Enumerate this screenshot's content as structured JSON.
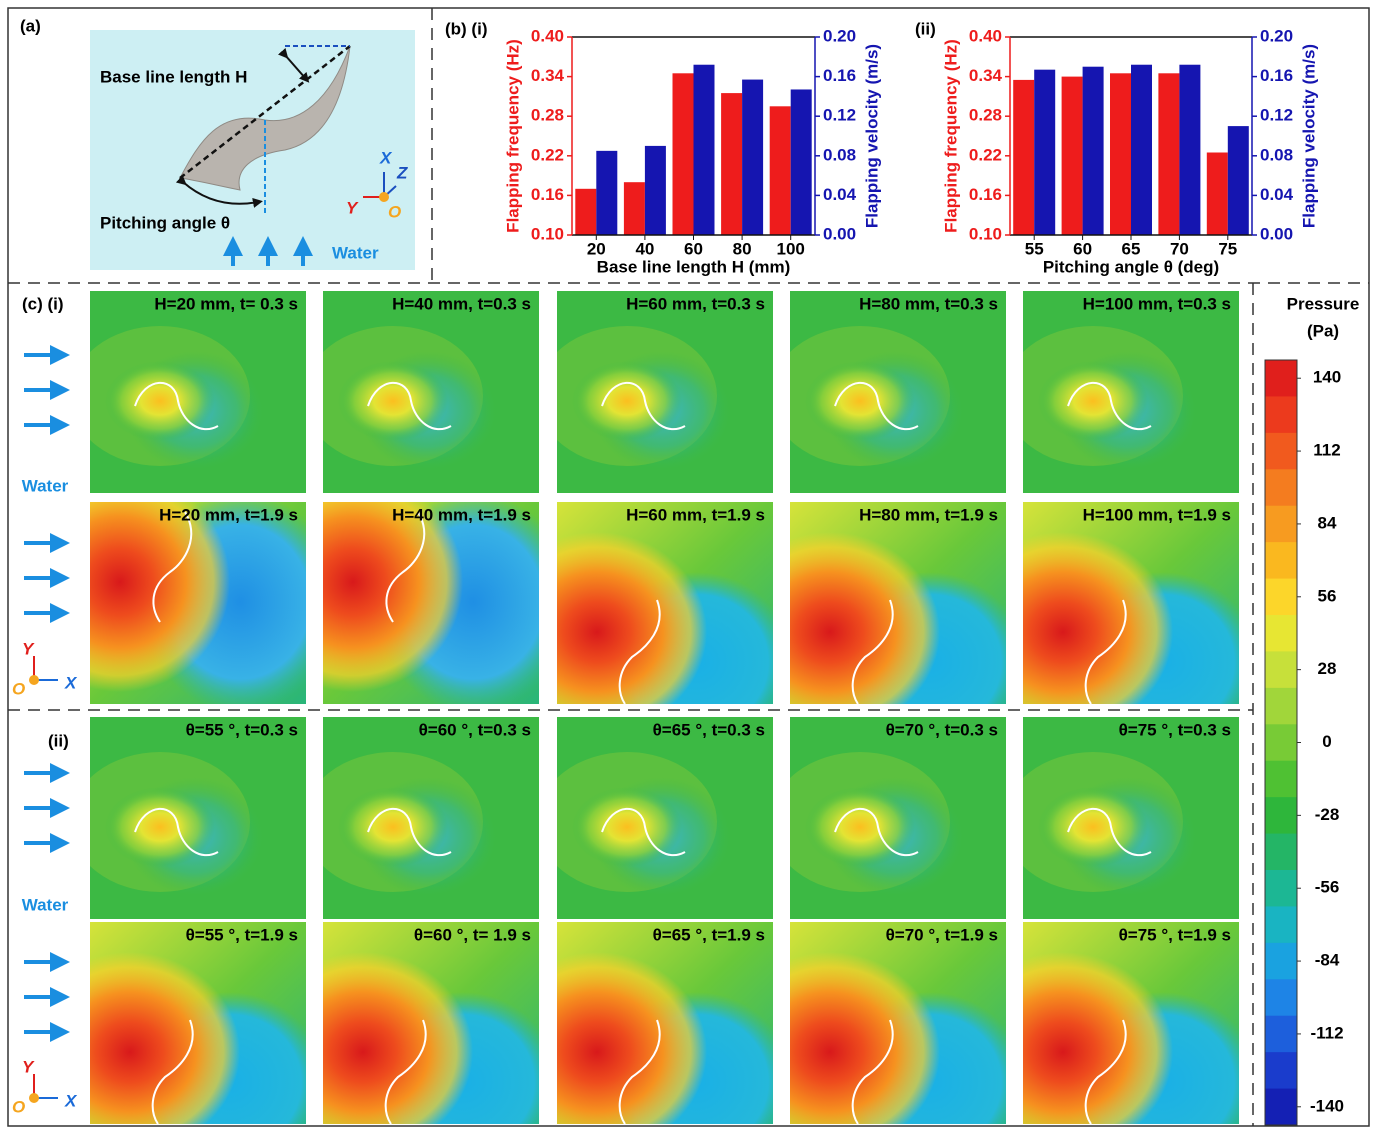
{
  "panel_a": {
    "label": "(a)",
    "baseline": "Base line length H",
    "pitching": "Pitching angle θ",
    "water": "Water",
    "axes": {
      "x": "X",
      "z": "Z",
      "y": "Y",
      "o": "O"
    }
  },
  "chart_data": [
    {
      "type": "bar",
      "label": "(b) (i)",
      "xlabel": "Base line length H (mm)",
      "ylabel": "Flapping frequency (Hz)",
      "y2label": "Flapping velocity (m/s)",
      "categories": [
        "20",
        "40",
        "60",
        "80",
        "100"
      ],
      "series": [
        {
          "color": "#ee1c1c",
          "values": [
            0.17,
            0.18,
            0.345,
            0.315,
            0.295
          ]
        },
        {
          "color": "#1515b0",
          "axis": "y2",
          "values": [
            0.085,
            0.09,
            0.172,
            0.157,
            0.147
          ]
        }
      ],
      "ylim": [
        0.1,
        0.4
      ],
      "yticks": [
        {
          "value": 0.1,
          "label": "0.10"
        },
        0.16,
        0.22,
        0.28,
        0.34,
        {
          "value": 0.4,
          "label": "0.40"
        }
      ],
      "y2lim": [
        0,
        0.2
      ],
      "y2ticks": [
        {
          "value": 0,
          "label": "0.00"
        },
        0.04,
        0.08,
        0.12,
        0.16,
        {
          "value": 0.2,
          "label": "0.20"
        }
      ]
    },
    {
      "type": "bar",
      "label": "(ii)",
      "xlabel": "Pitching angle θ (deg)",
      "ylabel": "Flapping frequency (Hz)",
      "y2label": "Flapping velocity (m/s)",
      "categories": [
        "55",
        "60",
        "65",
        "70",
        "75"
      ],
      "series": [
        {
          "color": "#ee1c1c",
          "values": [
            0.335,
            0.34,
            0.345,
            0.345,
            0.225
          ]
        },
        {
          "color": "#1515b0",
          "axis": "y2",
          "values": [
            0.167,
            0.17,
            0.172,
            0.172,
            0.11
          ]
        }
      ],
      "ylim": [
        0.1,
        0.4
      ],
      "yticks": [
        {
          "value": 0.1,
          "label": "0.10"
        },
        0.16,
        0.22,
        0.28,
        0.34,
        {
          "value": 0.4,
          "label": "0.40"
        }
      ],
      "y2lim": [
        0,
        0.2
      ],
      "y2ticks": [
        {
          "value": 0,
          "label": "0.00"
        },
        0.04,
        0.08,
        0.12,
        0.16,
        {
          "value": 0.2,
          "label": "0.20"
        }
      ]
    }
  ],
  "panel_c": {
    "label_i": "(c) (i)",
    "label_ii": "(ii)",
    "water": [
      "Water",
      "Water"
    ],
    "axes": [
      {
        "y": "Y",
        "o": "O",
        "x": "X"
      },
      {
        "y": "Y",
        "o": "O",
        "x": "X"
      }
    ],
    "rows": [
      [
        "H=20 mm, t= 0.3 s",
        "H=40 mm, t=0.3 s",
        "H=60 mm, t=0.3 s",
        "H=80 mm, t=0.3 s",
        "H=100 mm, t=0.3 s"
      ],
      [
        "H=20 mm, t=1.9 s",
        "H=40 mm, t=1.9 s",
        "H=60 mm, t=1.9 s",
        "H=80 mm, t=1.9 s",
        "H=100 mm, t=1.9 s"
      ],
      [
        "θ=55 °, t=0.3 s",
        "θ=60 °, t=0.3 s",
        "θ=65 °, t=0.3 s",
        "θ=70 °, t=0.3 s",
        "θ=75 °, t=0.3 s"
      ],
      [
        "θ=55 °, t=1.9 s",
        "θ=60 °, t= 1.9 s",
        "θ=65 °, t=1.9 s",
        "θ=70 °, t=1.9 s",
        "θ=75 °, t=1.9 s"
      ]
    ]
  },
  "colorbar": {
    "title": [
      "Pressure",
      "(Pa)"
    ],
    "ticks": [
      140,
      112,
      84,
      56,
      28,
      0,
      -28,
      -56,
      -84,
      -112,
      -140
    ],
    "colors": [
      "#e01f1c",
      "#ec3a1d",
      "#f15a1e",
      "#f47c1f",
      "#f79b20",
      "#fab81f",
      "#fcd62a",
      "#e7e633",
      "#c7e03a",
      "#a1d63a",
      "#78cb36",
      "#4fc133",
      "#2eb63b",
      "#24b566",
      "#1cb794",
      "#19b4c2",
      "#1aa2e0",
      "#1e84e6",
      "#1d5fdc",
      "#1a3ccc",
      "#1420b4"
    ]
  }
}
